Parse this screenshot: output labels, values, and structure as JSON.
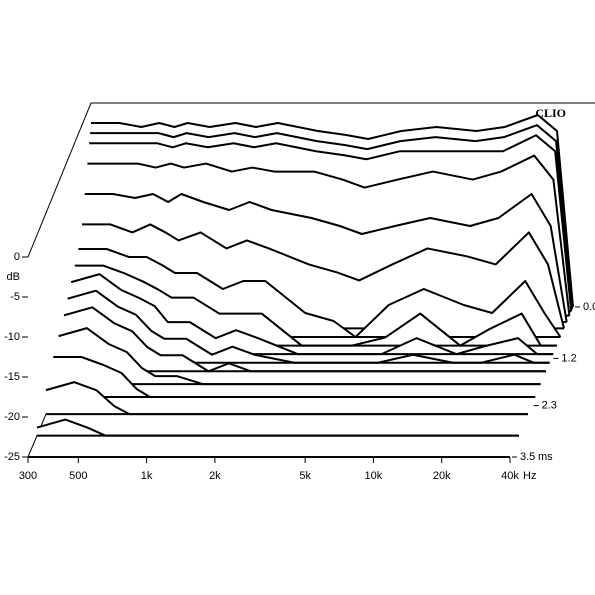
{
  "chart_data": {
    "type": "waterfall",
    "brand": "CLIO",
    "xlabel": "Hz",
    "ylabel": "dB",
    "zlabel": "ms",
    "log_x": true,
    "x": [
      300,
      400,
      500,
      600,
      700,
      800,
      1000,
      1300,
      1600,
      2000,
      3000,
      4000,
      5000,
      7000,
      10000,
      15000,
      20000,
      28000,
      34000,
      40000
    ],
    "z": [
      0,
      0.05,
      0.1,
      0.2,
      0.35,
      0.5,
      0.7,
      0.9,
      1.1,
      1.3,
      1.5,
      1.8,
      2.1,
      2.5,
      3.0,
      3.5
    ],
    "values": [
      [
        -2,
        -2,
        -2.5,
        -2,
        -2.5,
        -2,
        -2.5,
        -2,
        -2.5,
        -2,
        -3,
        -3.5,
        -4,
        -3,
        -2.5,
        -3,
        -2.5,
        -1,
        -3,
        -25
      ],
      [
        -3,
        -3,
        -3,
        -3,
        -3.5,
        -3,
        -3.5,
        -3,
        -3.5,
        -3,
        -4,
        -4.5,
        -5,
        -4,
        -3.5,
        -4,
        -3.5,
        -2,
        -4,
        -25
      ],
      [
        -4,
        -4,
        -4,
        -4,
        -4.5,
        -4,
        -4.5,
        -4,
        -4.5,
        -4,
        -5,
        -5.5,
        -6,
        -5,
        -5,
        -5,
        -5,
        -3,
        -5,
        -25
      ],
      [
        -6,
        -6,
        -6,
        -6.5,
        -6,
        -6.5,
        -6,
        -7,
        -6.5,
        -7,
        -7,
        -8,
        -9,
        -8,
        -7,
        -8,
        -7,
        -5,
        -8,
        -25
      ],
      [
        -9,
        -9,
        -9.5,
        -9,
        -10,
        -9,
        -10,
        -11,
        -10,
        -11,
        -12,
        -13,
        -14,
        -13,
        -12,
        -13,
        -12,
        -9,
        -13,
        -25
      ],
      [
        -12,
        -12,
        -13,
        -12,
        -13,
        -14,
        -13,
        -15,
        -14,
        -15,
        -17,
        -18,
        -19,
        -17,
        -15,
        -16,
        -17,
        -13,
        -17,
        -25
      ],
      [
        -14,
        -14,
        -15,
        -15,
        -16,
        -17,
        -17,
        -19,
        -18,
        -18,
        -22,
        -23,
        -25,
        -21,
        -19,
        -21,
        -22,
        -18,
        -22,
        -25
      ],
      [
        -15,
        -15,
        -16,
        -17,
        -18,
        -19,
        -19,
        -21,
        -21,
        -21,
        -25,
        -25,
        -25,
        -24,
        -21,
        -25,
        -23,
        -21,
        -25,
        -25
      ],
      [
        -16,
        -15,
        -17,
        -18,
        -19,
        -21,
        -21,
        -23,
        -22,
        -23,
        -25,
        -25,
        -25,
        -25,
        -23,
        -25,
        -24,
        -23,
        -25,
        -25
      ],
      [
        -17,
        -16,
        -18,
        -19,
        -21,
        -22,
        -22,
        -24,
        -23,
        -24,
        -25,
        -25,
        -25,
        -25,
        -24,
        -25,
        -25,
        -24,
        -25,
        -25
      ],
      [
        -18,
        -17,
        -19,
        -20,
        -22,
        -23,
        -23,
        -25,
        -24,
        -25,
        -25,
        -25,
        -25,
        -25,
        -25,
        -25,
        -25,
        -25,
        -25,
        -25
      ],
      [
        -19,
        -18,
        -20,
        -21,
        -23,
        -24,
        -24,
        -25,
        -25,
        -25,
        -25,
        -25,
        -25,
        -25,
        -25,
        -25,
        -25,
        -25,
        -25,
        -25
      ],
      [
        -20,
        -20,
        -21,
        -22,
        -24,
        -25,
        -25,
        -25,
        -25,
        -25,
        -25,
        -25,
        -25,
        -25,
        -25,
        -25,
        -25,
        -25,
        -25,
        -25
      ],
      [
        -22,
        -21,
        -22,
        -24,
        -25,
        -25,
        -25,
        -25,
        -25,
        -25,
        -25,
        -25,
        -25,
        -25,
        -25,
        -25,
        -25,
        -25,
        -25,
        -25
      ],
      [
        -24,
        -23,
        -24,
        -25,
        -25,
        -25,
        -25,
        -25,
        -25,
        -25,
        -25,
        -25,
        -25,
        -25,
        -25,
        -25,
        -25,
        -25,
        -25,
        -25
      ],
      [
        -25,
        -25,
        -25,
        -25,
        -25,
        -25,
        -25,
        -25,
        -25,
        -25,
        -25,
        -25,
        -25,
        -25,
        -25,
        -25,
        -25,
        -25,
        -25,
        -25
      ]
    ],
    "xlim": [
      300,
      40000
    ],
    "xticks": [
      300,
      500,
      {
        "value": 1000,
        "label": "1k"
      },
      {
        "value": 2000,
        "label": "2k"
      },
      {
        "value": 5000,
        "label": "5k"
      },
      {
        "value": 10000,
        "label": "10k"
      },
      {
        "value": 20000,
        "label": "20k"
      },
      {
        "value": 40000,
        "label": "40k"
      }
    ],
    "ylim": [
      -25,
      0
    ],
    "yticks": [
      0,
      -5,
      -10,
      -15,
      -20,
      -25
    ],
    "zlim": [
      0,
      3.5
    ],
    "zticks": [
      {
        "value": 0,
        "label": "0.0"
      },
      1.2,
      2.3,
      3.5
    ],
    "color": "#000000"
  }
}
